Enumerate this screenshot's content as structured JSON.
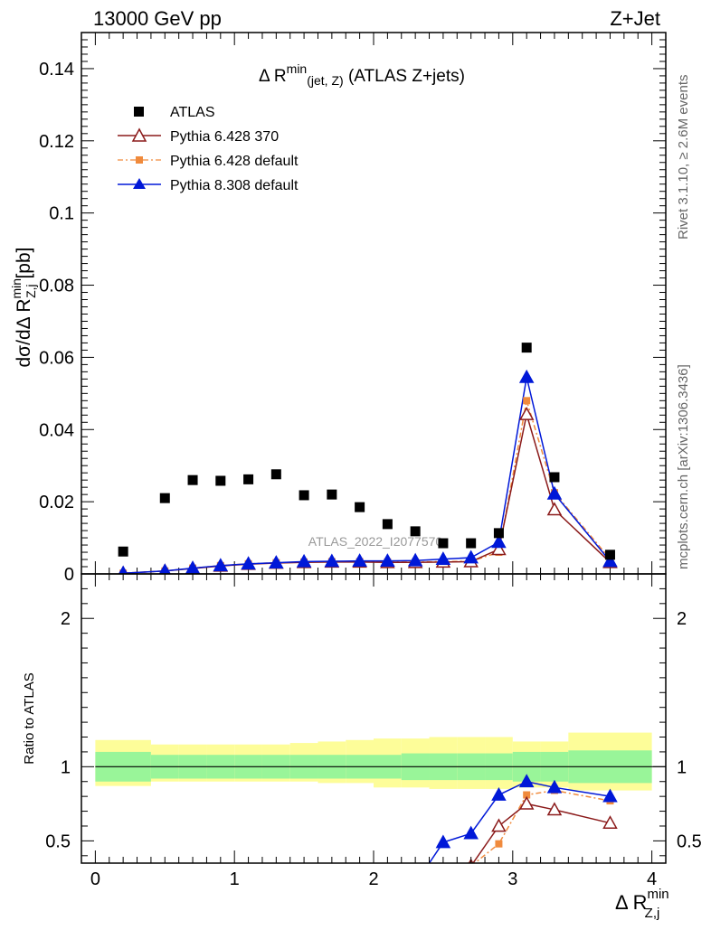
{
  "header": {
    "left": "13000 GeV pp",
    "right": "Z+Jet"
  },
  "side_labels": {
    "rivet": "Rivet 3.1.10, ≥ 2.6M events",
    "mcplots": "mcplots.cern.ch [arXiv:1306.3436]"
  },
  "watermark": "ATLAS_2022_I2077570",
  "plot_title": {
    "prefix": "Δ R",
    "sup": "min",
    "sub": "(jet, Z)",
    "suffix": " (ATLAS Z+jets)"
  },
  "ylabel_main": {
    "prefix": "dσ/dΔ R",
    "sup": "min",
    "sub": "Z,j",
    "suffix": " [pb]"
  },
  "ylabel_ratio": "Ratio to ATLAS",
  "xlabel": {
    "prefix": "Δ R",
    "sup": "min",
    "sub": "Z,j"
  },
  "colors": {
    "atlas": "#000000",
    "p6_370": "#8b1a1a",
    "p6_def": "#f08a3c",
    "p8_def": "#0018d8",
    "band_inner": "#99f599",
    "band_outer": "#fdfd99"
  },
  "chart_data": [
    {
      "type": "scatter",
      "panel": "main",
      "xlim": [
        -0.1,
        4.1
      ],
      "ylim": [
        0,
        0.15
      ],
      "x_ticks": [
        0,
        1,
        2,
        3,
        4
      ],
      "y_ticks": [
        0,
        0.02,
        0.04,
        0.06,
        0.08,
        0.1,
        0.12,
        0.14
      ],
      "y_tick_labels": [
        "0",
        "0.02",
        "0.04",
        "0.06",
        "0.08",
        "0.1",
        "0.12",
        "0.14"
      ],
      "legend_position": "top-left",
      "series": [
        {
          "name": "ATLAS",
          "marker": "square",
          "x": [
            0.2,
            0.5,
            0.7,
            0.9,
            1.1,
            1.3,
            1.5,
            1.7,
            1.9,
            2.1,
            2.3,
            2.5,
            2.7,
            2.9,
            3.1,
            3.3,
            3.7
          ],
          "y": [
            0.0062,
            0.021,
            0.026,
            0.0258,
            0.0262,
            0.0276,
            0.0218,
            0.022,
            0.0185,
            0.0138,
            0.0118,
            0.0085,
            0.0085,
            0.0113,
            0.0627,
            0.0268,
            0.0053
          ]
        },
        {
          "name": "Pythia 6.428 370",
          "marker": "open-triangle",
          "line": "solid",
          "x": [
            0.2,
            0.5,
            0.7,
            0.9,
            1.1,
            1.3,
            1.5,
            1.7,
            1.9,
            2.1,
            2.3,
            2.5,
            2.7,
            2.9,
            3.1,
            3.3,
            3.7
          ],
          "y": [
            0.0002,
            0.0008,
            0.0015,
            0.0022,
            0.0027,
            0.003,
            0.0032,
            0.0033,
            0.0033,
            0.0032,
            0.0032,
            0.0033,
            0.0034,
            0.0068,
            0.0442,
            0.0178,
            0.0032
          ]
        },
        {
          "name": "Pythia 6.428 default",
          "marker": "small-square",
          "line": "dashdot",
          "x": [
            0.2,
            0.5,
            0.7,
            0.9,
            1.1,
            1.3,
            1.5,
            1.7,
            1.9,
            2.1,
            2.3,
            2.5,
            2.7,
            2.9,
            3.1,
            3.3,
            3.7
          ],
          "y": [
            0.0002,
            0.0008,
            0.0016,
            0.0023,
            0.0028,
            0.0031,
            0.0033,
            0.0034,
            0.0034,
            0.0033,
            0.0033,
            0.0034,
            0.0035,
            0.006,
            0.048,
            0.0225,
            0.0041
          ]
        },
        {
          "name": "Pythia 8.308 default",
          "marker": "filled-triangle",
          "line": "solid",
          "x": [
            0.2,
            0.5,
            0.7,
            0.9,
            1.1,
            1.3,
            1.5,
            1.7,
            1.9,
            2.1,
            2.3,
            2.5,
            2.7,
            2.9,
            3.1,
            3.3,
            3.7
          ],
          "y": [
            0.0002,
            0.0008,
            0.0016,
            0.0023,
            0.0028,
            0.0031,
            0.0034,
            0.0035,
            0.0036,
            0.0036,
            0.0037,
            0.0041,
            0.0045,
            0.0088,
            0.0545,
            0.0222,
            0.0035
          ]
        }
      ]
    },
    {
      "type": "line",
      "panel": "ratio",
      "xlim": [
        -0.1,
        4.1
      ],
      "ylim": [
        0.35,
        2.3
      ],
      "x_ticks": [
        0,
        1,
        2,
        3,
        4
      ],
      "y_ticks": [
        0.5,
        1,
        2
      ],
      "y_tick_labels": [
        "0.5",
        "1",
        "2"
      ],
      "reference_line": 1,
      "bands": {
        "edges": [
          0,
          0.4,
          0.6,
          0.8,
          1.0,
          1.2,
          1.4,
          1.6,
          1.8,
          2.0,
          2.2,
          2.4,
          2.6,
          2.8,
          3.0,
          3.2,
          3.4,
          4.0
        ],
        "inner_low": [
          0.9,
          0.92,
          0.92,
          0.92,
          0.92,
          0.92,
          0.92,
          0.92,
          0.92,
          0.92,
          0.91,
          0.91,
          0.91,
          0.91,
          0.9,
          0.9,
          0.89
        ],
        "inner_high": [
          1.1,
          1.08,
          1.08,
          1.08,
          1.08,
          1.08,
          1.08,
          1.08,
          1.08,
          1.08,
          1.09,
          1.09,
          1.09,
          1.09,
          1.1,
          1.1,
          1.11
        ],
        "outer_low": [
          0.87,
          0.9,
          0.9,
          0.9,
          0.9,
          0.9,
          0.9,
          0.89,
          0.89,
          0.86,
          0.86,
          0.85,
          0.85,
          0.85,
          0.86,
          0.86,
          0.84
        ],
        "outer_high": [
          1.18,
          1.15,
          1.15,
          1.15,
          1.15,
          1.15,
          1.16,
          1.17,
          1.18,
          1.19,
          1.19,
          1.2,
          1.2,
          1.2,
          1.17,
          1.17,
          1.23
        ]
      },
      "series": [
        {
          "name": "Pythia 6.428 370",
          "x": [
            2.7,
            2.9,
            3.1,
            3.3,
            3.7
          ],
          "y": [
            0.33,
            0.6,
            0.75,
            0.71,
            0.62
          ]
        },
        {
          "name": "Pythia 6.428 default",
          "x": [
            2.7,
            2.9,
            3.1,
            3.3,
            3.7
          ],
          "y": [
            0.33,
            0.48,
            0.81,
            0.84,
            0.77
          ]
        },
        {
          "name": "Pythia 8.308 default",
          "x": [
            2.4,
            2.5,
            2.7,
            2.9,
            3.1,
            3.3,
            3.7
          ],
          "y": [
            0.35,
            0.49,
            0.55,
            0.81,
            0.9,
            0.86,
            0.8
          ]
        }
      ]
    }
  ]
}
